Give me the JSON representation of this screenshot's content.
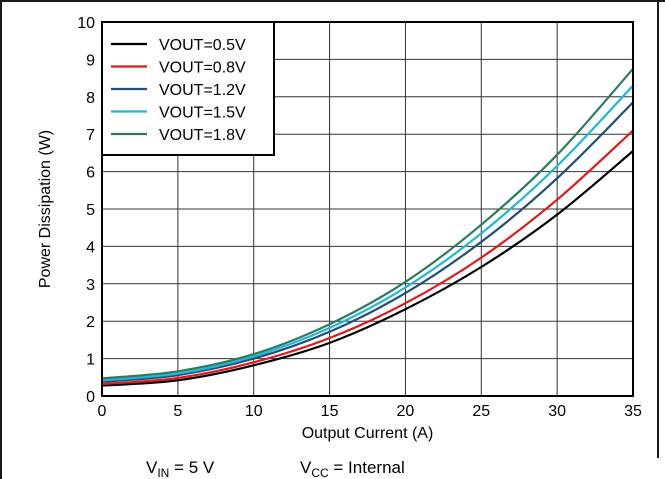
{
  "chart_data": {
    "type": "line",
    "xlabel": "Output Current (A)",
    "ylabel": "Power Dissipation (W)",
    "xlim": [
      0,
      35
    ],
    "ylim": [
      0,
      10
    ],
    "xticks": [
      0,
      5,
      10,
      15,
      20,
      25,
      30,
      35
    ],
    "yticks": [
      0,
      1,
      2,
      3,
      4,
      5,
      6,
      7,
      8,
      9,
      10
    ],
    "grid": true,
    "legend_position": "top-left",
    "x": [
      0,
      5,
      10,
      15,
      20,
      25,
      30,
      35
    ],
    "series": [
      {
        "name": "VOUT=0.5V",
        "color": "#000000",
        "values": [
          0.28,
          0.42,
          0.82,
          1.42,
          2.32,
          3.45,
          4.85,
          6.55
        ]
      },
      {
        "name": "VOUT=0.8V",
        "color": "#e0191b",
        "values": [
          0.32,
          0.48,
          0.9,
          1.55,
          2.48,
          3.7,
          5.25,
          7.1
        ]
      },
      {
        "name": "VOUT=1.2V",
        "color": "#1f4e79",
        "values": [
          0.38,
          0.56,
          1.0,
          1.72,
          2.75,
          4.12,
          5.82,
          7.85
        ]
      },
      {
        "name": "VOUT=1.5V",
        "color": "#1cb8d6",
        "values": [
          0.42,
          0.6,
          1.06,
          1.82,
          2.9,
          4.35,
          6.15,
          8.3
        ]
      },
      {
        "name": "VOUT=1.8V",
        "color": "#2e7b5a",
        "values": [
          0.47,
          0.66,
          1.12,
          1.92,
          3.05,
          4.58,
          6.45,
          8.75
        ]
      }
    ]
  },
  "notes": {
    "vin": {
      "main": "V",
      "sub": "IN",
      "rest": " = 5 V"
    },
    "vcc": {
      "main": "V",
      "sub": "CC",
      "rest": " = Internal"
    }
  }
}
